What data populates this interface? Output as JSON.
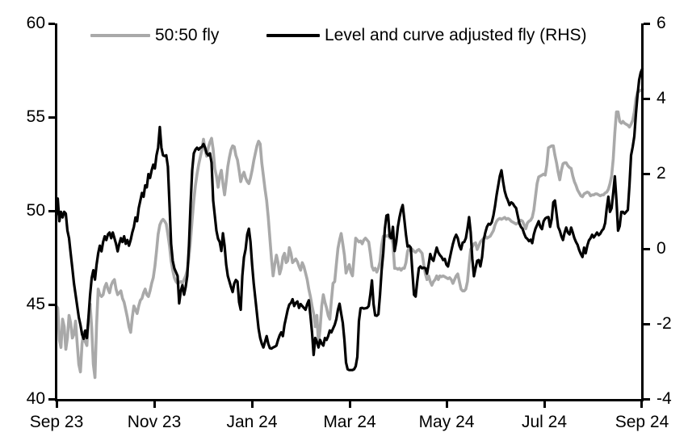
{
  "legend": {
    "series1_label": "50:50 fly",
    "series2_label": "Level and curve adjusted fly (RHS)"
  },
  "colors": {
    "series1": "#a9a9a9",
    "series2": "#000000",
    "axis": "#000000",
    "background": "#ffffff"
  },
  "chart_data": {
    "type": "line",
    "title": "",
    "xlabel": "",
    "ylabel_left": "",
    "ylabel_right": "",
    "grid": false,
    "legend_position": "top",
    "x_axis": {
      "tick_labels": [
        "Sep 23",
        "Nov 23",
        "Jan 24",
        "Mar 24",
        "May 24",
        "Jul 24",
        "Sep 24"
      ],
      "span_months": 12,
      "start": "Sep 2023",
      "end": "Sep 2024"
    },
    "y_left": {
      "min": 40,
      "max": 60,
      "tick_labels": [
        "60",
        "55",
        "50",
        "45",
        "40"
      ],
      "tick_values": [
        60,
        55,
        50,
        45,
        40
      ]
    },
    "y_right": {
      "min": -4,
      "max": 6,
      "tick_labels": [
        "6",
        "4",
        "2",
        "0",
        "-2",
        "-4"
      ],
      "tick_values": [
        6,
        4,
        2,
        0,
        -2,
        -4
      ]
    },
    "sample_step_months": 0.0331,
    "series": [
      {
        "name": "50:50 fly",
        "axis": "left",
        "color": "#a9a9a9",
        "values": [
          45.0,
          44.9,
          43.2,
          42.8,
          44.3,
          43.9,
          42.7,
          43.3,
          44.5,
          44.1,
          43.3,
          43.5,
          44.2,
          43.0,
          41.9,
          41.5,
          43.0,
          43.6,
          43.1,
          42.9,
          44.3,
          45.1,
          43.8,
          41.9,
          41.2,
          44.0,
          45.9,
          45.6,
          45.5,
          45.6,
          46.0,
          46.2,
          45.9,
          45.7,
          46.1,
          46.3,
          46.4,
          45.9,
          45.6,
          45.7,
          45.8,
          45.4,
          45.2,
          44.8,
          44.4,
          43.9,
          43.6,
          44.4,
          45.0,
          44.8,
          44.6,
          45.0,
          45.3,
          45.4,
          45.7,
          45.9,
          45.6,
          45.5,
          45.8,
          46.2,
          46.5,
          47.1,
          47.9,
          48.8,
          49.3,
          49.5,
          49.6,
          49.5,
          49.35,
          48.8,
          48.2,
          47.4,
          46.9,
          46.5,
          46.3,
          46.2,
          46.25,
          46.3,
          46.2,
          46.4,
          46.6,
          46.9,
          47.6,
          48.5,
          49.6,
          50.6,
          51.4,
          52.0,
          52.5,
          52.9,
          53.3,
          53.85,
          53.3,
          52.95,
          53.4,
          53.7,
          53.9,
          53.3,
          52.3,
          51.9,
          51.3,
          51.9,
          52.2,
          51.5,
          50.9,
          51.6,
          52.4,
          52.9,
          53.3,
          53.5,
          53.45,
          53.0,
          52.75,
          52.2,
          51.6,
          51.9,
          52.1,
          51.8,
          51.6,
          51.5,
          51.8,
          52.2,
          52.7,
          53.1,
          53.5,
          53.75,
          53.6,
          52.6,
          51.9,
          51.2,
          50.6,
          49.7,
          48.6,
          47.5,
          46.6,
          47.2,
          47.7,
          47.3,
          46.7,
          47.0,
          47.6,
          47.8,
          47.3,
          47.4,
          48.1,
          47.8,
          47.3,
          47.4,
          47.5,
          47.35,
          47.1,
          46.9,
          47.3,
          47.1,
          46.75,
          46.4,
          45.9,
          45.5,
          45.0,
          44.6,
          43.9,
          44.5,
          43.0,
          43.8,
          45.0,
          45.6,
          45.2,
          44.9,
          44.5,
          44.3,
          45.3,
          46.2,
          46.3,
          47.2,
          48.05,
          48.5,
          48.85,
          48.3,
          47.7,
          46.75,
          47.0,
          47.2,
          46.8,
          46.6,
          47.6,
          48.6,
          48.5,
          48.4,
          48.45,
          48.3,
          48.5,
          48.6,
          48.5,
          48.4,
          47.8,
          47.1,
          46.9,
          47.0,
          46.8,
          47.0,
          47.35,
          48.2,
          48.7,
          48.75,
          48.7,
          48.75,
          48.6,
          48.7,
          48.3,
          47.0,
          47.0,
          46.95,
          47.0,
          46.9,
          47.0,
          47.0,
          47.3,
          47.9,
          48.1,
          47.9,
          48.0,
          47.9,
          47.85,
          47.95,
          48.0,
          47.9,
          47.8,
          47.2,
          46.7,
          46.4,
          46.6,
          46.3,
          46.1,
          46.3,
          46.4,
          46.6,
          46.4,
          46.6,
          46.55,
          46.6,
          46.55,
          46.5,
          46.45,
          46.5,
          46.4,
          46.2,
          46.4,
          46.6,
          46.7,
          46.3,
          45.9,
          45.8,
          45.8,
          45.9,
          46.3,
          47.2,
          48.0,
          48.15,
          48.3,
          48.35,
          48.0,
          48.2,
          48.4,
          48.5,
          48.6,
          48.7,
          48.6,
          48.65,
          48.7,
          48.85,
          49.0,
          49.3,
          49.5,
          49.6,
          49.65,
          49.6,
          49.65,
          49.7,
          49.6,
          49.65,
          49.6,
          49.5,
          49.45,
          49.4,
          49.35,
          49.4,
          49.5,
          49.55,
          49.5,
          49.3,
          49.1,
          49.4,
          49.5,
          49.55,
          49.7,
          50.1,
          50.8,
          51.5,
          51.85,
          51.9,
          51.95,
          52.0,
          51.95,
          52.5,
          53.4,
          53.45,
          53.5,
          53.5,
          53.0,
          52.6,
          52.1,
          51.7,
          52.2,
          52.55,
          52.6,
          52.6,
          52.45,
          52.35,
          52.3,
          51.9,
          51.6,
          51.4,
          51.15,
          51.0,
          50.85,
          50.8,
          50.95,
          51.0,
          51.05,
          51.0,
          50.85,
          50.9,
          50.9,
          50.95,
          50.95,
          50.9,
          50.85,
          50.9,
          50.9,
          51.0,
          51.05,
          51.2,
          51.5,
          51.9,
          52.8,
          54.2,
          55.3,
          55.3,
          54.8,
          54.7,
          54.8,
          54.7,
          54.65,
          54.6,
          54.5,
          54.65,
          54.85,
          55.3,
          56.0,
          56.35,
          56.4,
          56.45,
          56.5
        ]
      },
      {
        "name": "Level and curve adjusted fly (RHS)",
        "axis": "right",
        "color": "#000000",
        "values": [
          0.9,
          1.35,
          0.75,
          1.0,
          0.85,
          1.0,
          0.95,
          0.5,
          0.3,
          -0.1,
          -0.5,
          -0.9,
          -1.2,
          -1.5,
          -1.8,
          -2.0,
          -2.25,
          -2.37,
          -2.15,
          -2.35,
          -1.8,
          -1.2,
          -0.75,
          -0.55,
          -0.8,
          -0.4,
          -0.1,
          0.1,
          -0.05,
          0.2,
          0.35,
          0.25,
          0.4,
          0.45,
          0.3,
          0.45,
          0.3,
          0.15,
          -0.05,
          0.15,
          0.3,
          0.2,
          0.35,
          0.15,
          0.25,
          0.1,
          0.25,
          0.45,
          0.6,
          0.85,
          0.75,
          1.1,
          1.3,
          1.5,
          1.4,
          1.7,
          1.65,
          2.0,
          1.9,
          2.1,
          2.25,
          2.15,
          2.5,
          2.7,
          3.25,
          2.7,
          2.5,
          2.48,
          2.5,
          2.2,
          1.2,
          0.15,
          -0.3,
          -0.5,
          -0.6,
          -0.7,
          -1.43,
          -1.1,
          -0.95,
          -1.2,
          -1.0,
          -0.7,
          0.1,
          1.2,
          2.1,
          2.55,
          2.65,
          2.7,
          2.65,
          2.7,
          2.72,
          2.8,
          2.7,
          2.55,
          2.5,
          2.55,
          2.3,
          1.3,
          0.9,
          0.5,
          0.28,
          0.2,
          -0.04,
          0.43,
          0.1,
          -0.4,
          -0.7,
          -0.85,
          -1.0,
          -1.13,
          -0.9,
          -0.81,
          -0.85,
          -1.4,
          -1.6,
          -0.7,
          -0.21,
          0.0,
          0.4,
          0.55,
          0.2,
          -0.4,
          -0.9,
          -1.3,
          -1.7,
          -2.1,
          -2.35,
          -2.5,
          -2.6,
          -2.45,
          -2.3,
          -2.5,
          -2.62,
          -2.63,
          -2.6,
          -2.58,
          -2.55,
          -2.4,
          -2.28,
          -2.2,
          -2.3,
          -2.0,
          -1.8,
          -1.6,
          -1.46,
          -1.42,
          -1.32,
          -1.5,
          -1.42,
          -1.38,
          -1.55,
          -1.45,
          -1.5,
          -1.55,
          -1.6,
          -1.45,
          -1.35,
          -1.75,
          -2.2,
          -2.8,
          -2.35,
          -2.45,
          -2.6,
          -2.4,
          -2.5,
          -2.55,
          -2.35,
          -2.4,
          -2.3,
          -2.15,
          -2.2,
          -2.1,
          -2.0,
          -1.85,
          -1.6,
          -1.44,
          -1.7,
          -1.95,
          -2.4,
          -3.0,
          -3.18,
          -3.2,
          -3.2,
          -3.2,
          -3.18,
          -3.1,
          -2.85,
          -1.9,
          -1.56,
          -1.55,
          -1.57,
          -1.56,
          -1.55,
          -1.5,
          -1.2,
          -0.82,
          -1.45,
          -1.75,
          -1.76,
          -1.72,
          -1.2,
          -0.55,
          -0.1,
          0.55,
          0.9,
          0.92,
          0.35,
          0.3,
          0.6,
          -0.04,
          0.2,
          0.6,
          0.85,
          1.05,
          1.18,
          0.8,
          0.4,
          0.08,
          0.1,
          0.05,
          -0.6,
          -1.2,
          -1.25,
          -0.85,
          -0.5,
          -0.45,
          -0.5,
          -0.48,
          -0.5,
          -0.64,
          -0.4,
          -0.12,
          -0.25,
          -0.3,
          -0.12,
          0.05,
          -0.08,
          -0.15,
          -0.2,
          -0.28,
          -0.25,
          -0.4,
          -0.45,
          -0.25,
          -0.05,
          0.15,
          0.3,
          0.39,
          0.3,
          0.1,
          0.0,
          0.18,
          0.2,
          0.3,
          0.55,
          0.86,
          0.45,
          -0.25,
          -0.71,
          -0.5,
          -0.3,
          -0.28,
          -0.45,
          -0.2,
          0.25,
          0.45,
          0.6,
          0.68,
          0.66,
          0.72,
          0.9,
          1.15,
          1.45,
          1.7,
          1.95,
          2.1,
          1.8,
          1.55,
          1.4,
          1.3,
          1.18,
          1.25,
          1.22,
          1.15,
          1.1,
          0.9,
          0.7,
          0.6,
          0.55,
          0.42,
          0.32,
          0.28,
          0.22,
          0.26,
          0.17,
          0.4,
          0.55,
          0.65,
          0.75,
          0.6,
          0.54,
          0.75,
          0.82,
          0.85,
          0.86,
          0.6,
          0.8,
          1.25,
          1.3,
          0.95,
          0.6,
          0.5,
          0.35,
          0.25,
          0.45,
          0.58,
          0.45,
          0.4,
          0.58,
          0.45,
          0.3,
          0.2,
          0.12,
          -0.02,
          -0.12,
          -0.2,
          0.05,
          -0.1,
          0.1,
          0.24,
          0.3,
          0.39,
          0.32,
          0.38,
          0.45,
          0.38,
          0.42,
          0.5,
          0.55,
          0.7,
          1.1,
          1.4,
          1.0,
          1.1,
          1.5,
          1.94,
          1.3,
          0.5,
          0.62,
          1.0,
          1.0,
          0.95,
          1.0,
          1.05,
          1.7,
          2.5,
          2.72,
          3.0,
          3.6,
          4.1,
          4.5,
          4.7,
          4.8
        ]
      }
    ]
  }
}
